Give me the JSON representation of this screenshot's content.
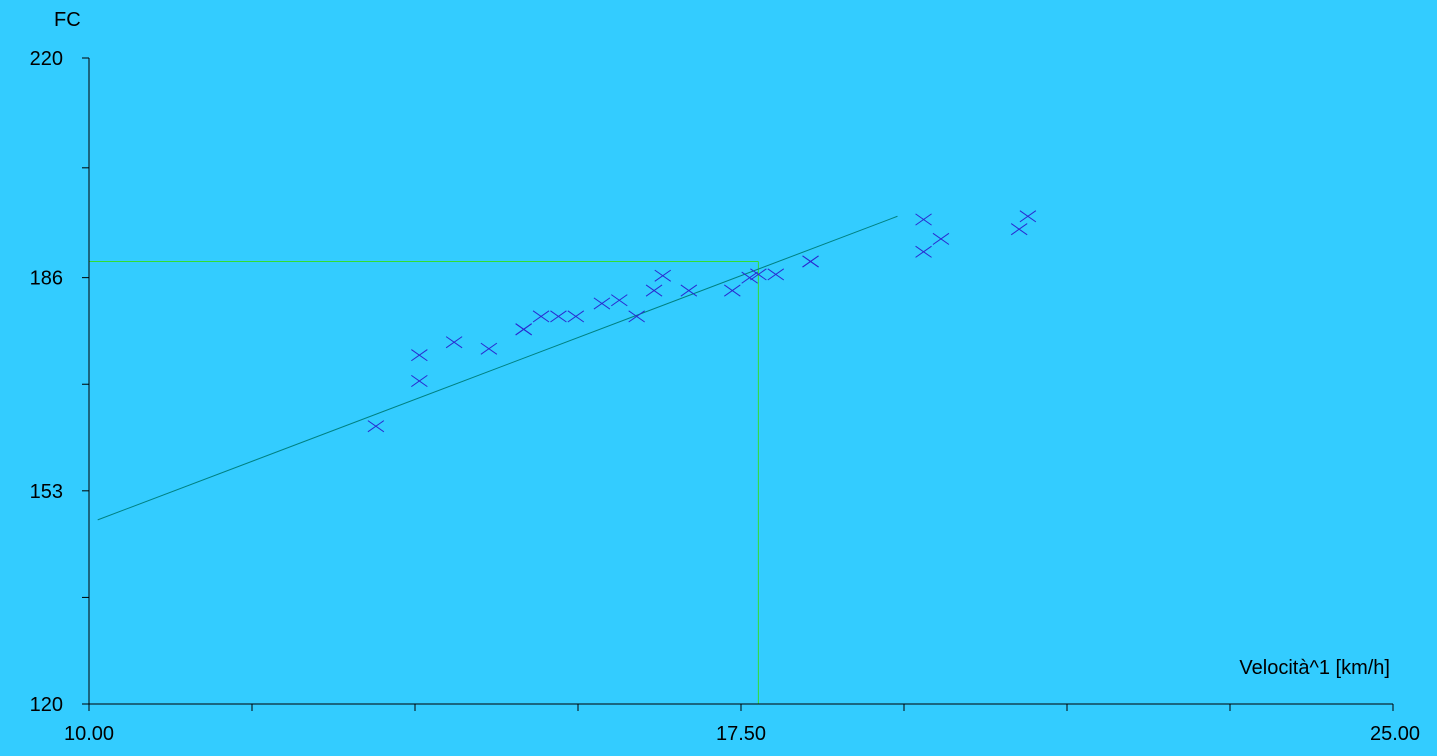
{
  "chart_data": {
    "type": "scatter",
    "title": "",
    "xlabel": "Velocità^1 [km/h]",
    "ylabel": "FC",
    "xlim": [
      10,
      25
    ],
    "ylim": [
      120,
      220
    ],
    "x_tick_labels": [
      {
        "value": 10,
        "label": "10.00"
      },
      {
        "value": 17.5,
        "label": "17.50"
      },
      {
        "value": 25,
        "label": "25.00"
      }
    ],
    "y_tick_labels": [
      {
        "value": 220,
        "label": "220"
      },
      {
        "value": 186,
        "label": "186"
      },
      {
        "value": 153,
        "label": "153"
      },
      {
        "value": 120,
        "label": "120"
      }
    ],
    "x_minor_ticks": [
      11.875,
      13.75,
      15.625,
      17.5,
      19.375,
      21.25,
      23.125
    ],
    "y_minor_ticks": [
      203,
      186,
      169.5,
      153,
      136.5
    ],
    "series": [
      {
        "color": "#2a2ad0",
        "marker": "x",
        "points": [
          [
            16.6,
            186.3
          ],
          [
            13.3,
            163.0
          ],
          [
            13.8,
            170.0
          ],
          [
            13.8,
            174.0
          ],
          [
            14.2,
            176.0
          ],
          [
            14.6,
            175.0
          ],
          [
            15.0,
            178.0
          ],
          [
            15.0,
            178.0
          ],
          [
            15.2,
            180.0
          ],
          [
            15.4,
            180.0
          ],
          [
            15.6,
            180.0
          ],
          [
            15.9,
            182.0
          ],
          [
            16.1,
            182.5
          ],
          [
            16.3,
            180.0
          ],
          [
            16.5,
            184.0
          ],
          [
            16.9,
            184.0
          ],
          [
            17.4,
            184.0
          ],
          [
            17.6,
            186.0
          ],
          [
            17.7,
            186.5
          ],
          [
            17.9,
            186.5
          ],
          [
            18.3,
            188.5
          ],
          [
            18.3,
            188.5
          ],
          [
            19.6,
            190.0
          ],
          [
            19.6,
            195.0
          ],
          [
            19.8,
            192.0
          ],
          [
            20.7,
            193.5
          ],
          [
            20.8,
            195.5
          ]
        ]
      }
    ],
    "regression_line": {
      "color": "#008080",
      "x": [
        10.1,
        19.3
      ],
      "y": [
        148.5,
        195.5
      ]
    },
    "threshold_lines": {
      "color": "#33dd33",
      "x_value": 17.7,
      "y_value": 188.5
    }
  }
}
